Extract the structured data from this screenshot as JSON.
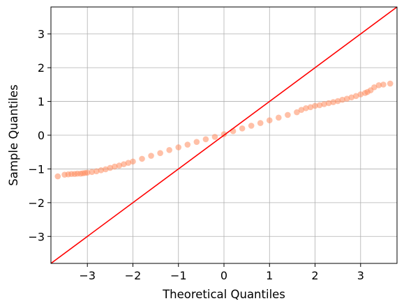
{
  "chart_data": {
    "type": "scatter",
    "title": "",
    "xlabel": "Theoretical Quantiles",
    "ylabel": "Sample Quantiles",
    "xlim": [
      -3.8,
      3.8
    ],
    "ylim": [
      -3.8,
      3.8
    ],
    "xticks": [
      -3,
      -2,
      -1,
      0,
      1,
      2,
      3
    ],
    "yticks": [
      -3,
      -2,
      -1,
      0,
      1,
      2,
      3
    ],
    "xtick_labels": [
      "−3",
      "−2",
      "−1",
      "0",
      "1",
      "2",
      "3"
    ],
    "ytick_labels": [
      "−3",
      "−2",
      "−1",
      "0",
      "1",
      "2",
      "3"
    ],
    "grid": true,
    "reference_line": {
      "type": "45-degree",
      "slope": 1,
      "intercept": 0,
      "color": "#ff0000"
    },
    "point_color": "#ff8c5f",
    "series": [
      {
        "x": [
          -3.65,
          -3.5,
          -3.42,
          -3.35,
          -3.28,
          -3.22,
          -3.15,
          -3.1,
          -3.05,
          -3.0,
          -2.9,
          -2.8,
          -2.7,
          -2.6,
          -2.5,
          -2.4,
          -2.3,
          -2.2,
          -2.1,
          -2.0,
          -1.8,
          -1.6,
          -1.4,
          -1.2,
          -1.0,
          -0.8,
          -0.6,
          -0.4,
          -0.2,
          0.0,
          0.2,
          0.4,
          0.6,
          0.8,
          1.0,
          1.2,
          1.4,
          1.6,
          1.7,
          1.8,
          1.9,
          2.0,
          2.1,
          2.2,
          2.3,
          2.4,
          2.5,
          2.6,
          2.7,
          2.8,
          2.9,
          3.0,
          3.1,
          3.15,
          3.22,
          3.3,
          3.4,
          3.5,
          3.65
        ],
        "y": [
          -1.22,
          -1.17,
          -1.16,
          -1.15,
          -1.15,
          -1.14,
          -1.14,
          -1.13,
          -1.12,
          -1.11,
          -1.09,
          -1.07,
          -1.04,
          -1.01,
          -0.97,
          -0.93,
          -0.9,
          -0.86,
          -0.82,
          -0.78,
          -0.7,
          -0.61,
          -0.53,
          -0.44,
          -0.36,
          -0.28,
          -0.2,
          -0.12,
          -0.05,
          0.03,
          0.12,
          0.2,
          0.28,
          0.36,
          0.44,
          0.52,
          0.6,
          0.68,
          0.75,
          0.8,
          0.83,
          0.87,
          0.89,
          0.92,
          0.95,
          0.98,
          1.01,
          1.05,
          1.08,
          1.12,
          1.16,
          1.21,
          1.25,
          1.28,
          1.33,
          1.42,
          1.48,
          1.5,
          1.53
        ]
      }
    ]
  }
}
